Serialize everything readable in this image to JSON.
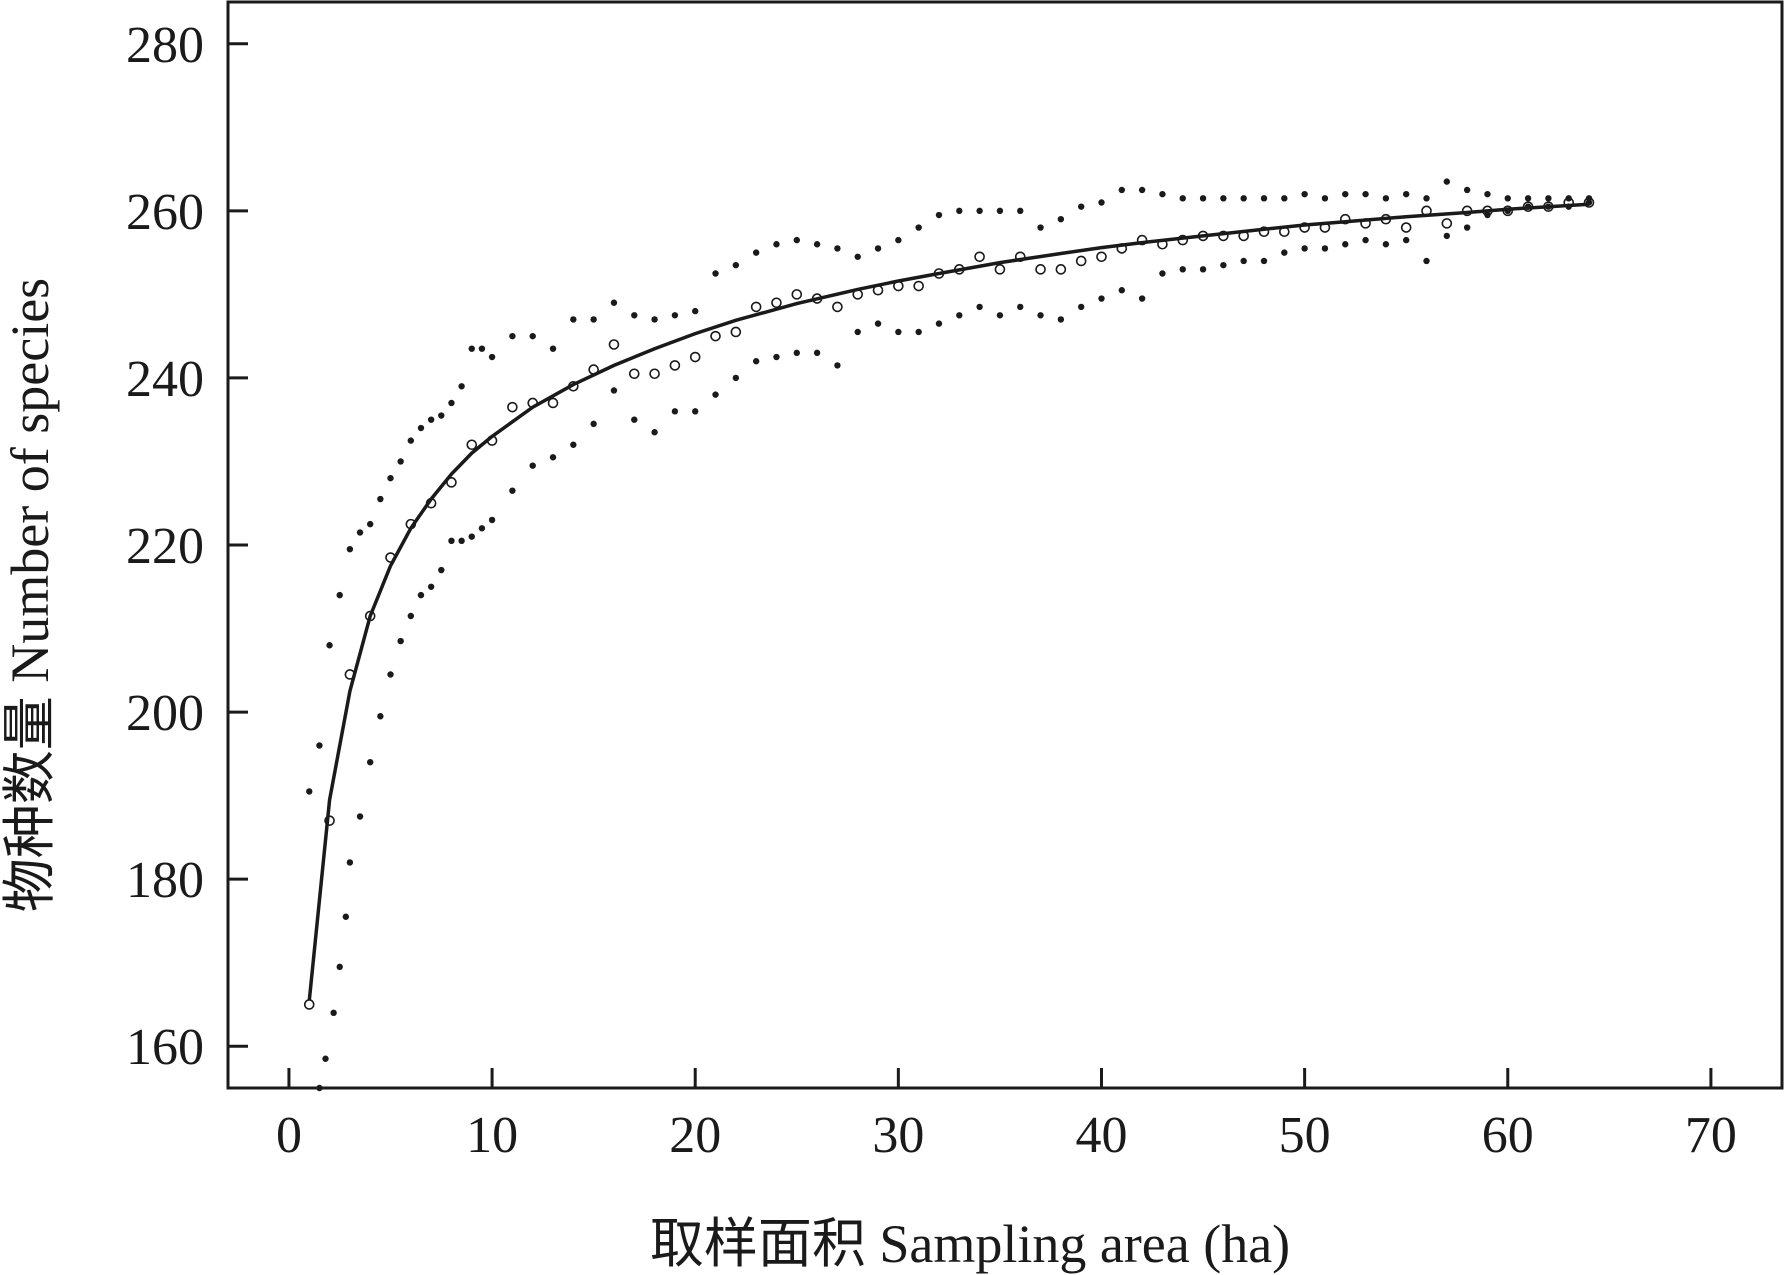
{
  "chart_data": {
    "type": "scatter",
    "xlabel": "取样面积 Sampling area (ha)",
    "ylabel": "物种数量 Number of species",
    "xlim": [
      -3,
      73.5
    ],
    "ylim": [
      155,
      285
    ],
    "xticks": [
      0,
      10,
      20,
      30,
      40,
      50,
      60,
      70
    ],
    "yticks": [
      160,
      180,
      200,
      220,
      240,
      260,
      280
    ],
    "grid": false,
    "series": [
      {
        "marker": "open-circle",
        "x": [
          1,
          2,
          3,
          4,
          5,
          6,
          7,
          8,
          9,
          10,
          11,
          12,
          13,
          14,
          15,
          16,
          17,
          18,
          19,
          20,
          21,
          22,
          23,
          24,
          25,
          26,
          27,
          28,
          29,
          30,
          31,
          32,
          33,
          34,
          35,
          36,
          37,
          38,
          39,
          40,
          41,
          42,
          43,
          44,
          45,
          46,
          47,
          48,
          49,
          50,
          51,
          52,
          53,
          54,
          55,
          56,
          57,
          58,
          59,
          60,
          61,
          62,
          63,
          64
        ],
        "y": [
          165,
          187,
          204.5,
          211.5,
          218.5,
          222.5,
          225,
          227.5,
          232,
          232.5,
          236.5,
          237,
          237,
          239,
          241,
          244,
          240.5,
          240.5,
          241.5,
          242.5,
          245,
          245.5,
          248.5,
          249,
          250,
          249.5,
          248.5,
          250,
          250.5,
          251,
          251,
          252.5,
          253,
          254.5,
          253,
          254.5,
          253,
          253,
          254,
          254.5,
          255.5,
          256.5,
          256,
          256.5,
          257,
          257,
          257,
          257.5,
          257.5,
          258,
          258,
          259,
          258.5,
          259,
          258,
          260,
          258.5,
          260,
          260,
          260,
          260.5,
          260.5,
          261,
          261
        ]
      },
      {
        "marker": "dot",
        "x": [
          1,
          1.5,
          2,
          2.5,
          3,
          3.5,
          4,
          4.5,
          5,
          5.5,
          6,
          6.5,
          7,
          7.5,
          8,
          8.5,
          9,
          9.5,
          10,
          11,
          12,
          13,
          14,
          15,
          16,
          17,
          18,
          19,
          20,
          21,
          22,
          23,
          24,
          25,
          26,
          27,
          28,
          29,
          30,
          31,
          32,
          33,
          34,
          35,
          36,
          37,
          38,
          39,
          40,
          41,
          42,
          43,
          44,
          45,
          46,
          47,
          48,
          49,
          50,
          51,
          52,
          53,
          54,
          55,
          56,
          57,
          58,
          59,
          60,
          61,
          62,
          63,
          64
        ],
        "y": [
          190.5,
          196,
          208,
          214,
          219.5,
          221.5,
          222.5,
          225.5,
          228,
          230,
          232.5,
          234,
          235,
          235.5,
          237,
          239,
          243.5,
          243.5,
          242.5,
          245,
          245,
          243.5,
          247,
          247,
          249,
          247.5,
          247,
          247.5,
          248,
          252.5,
          253.5,
          255,
          256,
          256.5,
          256,
          255.5,
          254.5,
          255.5,
          256.5,
          258,
          259.5,
          260,
          260,
          260,
          260,
          258,
          259,
          260.5,
          261,
          262.5,
          262.5,
          262,
          261.5,
          261.5,
          261.5,
          261.5,
          261.5,
          261.5,
          262,
          261.5,
          262,
          262,
          261.5,
          262,
          261.5,
          263.5,
          262.5,
          262,
          261.5,
          261.5,
          261.5,
          261.5,
          261.5
        ]
      },
      {
        "marker": "dot",
        "x": [
          1.5,
          1.8,
          2.2,
          2.5,
          2.8,
          3,
          3.5,
          4,
          4.5,
          5,
          5.5,
          6,
          6.5,
          7,
          7.5,
          8,
          8.5,
          9,
          9.5,
          10,
          11,
          12,
          13,
          14,
          15,
          16,
          17,
          18,
          19,
          20,
          21,
          22,
          23,
          24,
          25,
          26,
          27,
          28,
          29,
          30,
          31,
          32,
          33,
          34,
          35,
          36,
          37,
          38,
          39,
          40,
          41,
          42,
          43,
          44,
          45,
          46,
          47,
          48,
          49,
          50,
          51,
          52,
          53,
          54,
          55,
          56,
          57,
          58,
          59,
          60,
          61,
          62,
          63,
          64
        ],
        "y": [
          155,
          158.5,
          164,
          169.5,
          175.5,
          182,
          187.5,
          194,
          199.5,
          204.5,
          208.5,
          211.5,
          214,
          215,
          217,
          220.5,
          220.5,
          221,
          222,
          223,
          226.5,
          229.5,
          230.5,
          232,
          234.5,
          238.5,
          235,
          233.5,
          236,
          236,
          238,
          240,
          242,
          242.5,
          243,
          243,
          241.5,
          245.5,
          246.5,
          245.5,
          245.5,
          246.5,
          247.5,
          248.5,
          247.5,
          248.5,
          247.5,
          247,
          248.5,
          249.5,
          250.5,
          249.5,
          252.5,
          253,
          253,
          253.5,
          254,
          254,
          255,
          255.5,
          255.5,
          256,
          256.5,
          256,
          256.5,
          254,
          257,
          258,
          259.5,
          260,
          260.5,
          260.5,
          260.5,
          261
        ]
      },
      {
        "marker": "line",
        "x": [
          1,
          2,
          3,
          4,
          5,
          6,
          7,
          8,
          9,
          10,
          12,
          14,
          16,
          18,
          20,
          22,
          25,
          28,
          30,
          32,
          35,
          38,
          40,
          42,
          45,
          48,
          50,
          52,
          55,
          58,
          60,
          62,
          64
        ],
        "y": [
          165.5,
          189.5,
          202.5,
          211.5,
          217.5,
          222,
          225.5,
          228.5,
          231,
          233,
          236.5,
          239.2,
          241.5,
          243.5,
          245.3,
          246.9,
          248.9,
          250.6,
          251.6,
          252.5,
          253.8,
          254.9,
          255.6,
          256.2,
          257,
          257.8,
          258.3,
          258.7,
          259.3,
          259.8,
          260.2,
          260.5,
          260.8
        ]
      }
    ]
  }
}
